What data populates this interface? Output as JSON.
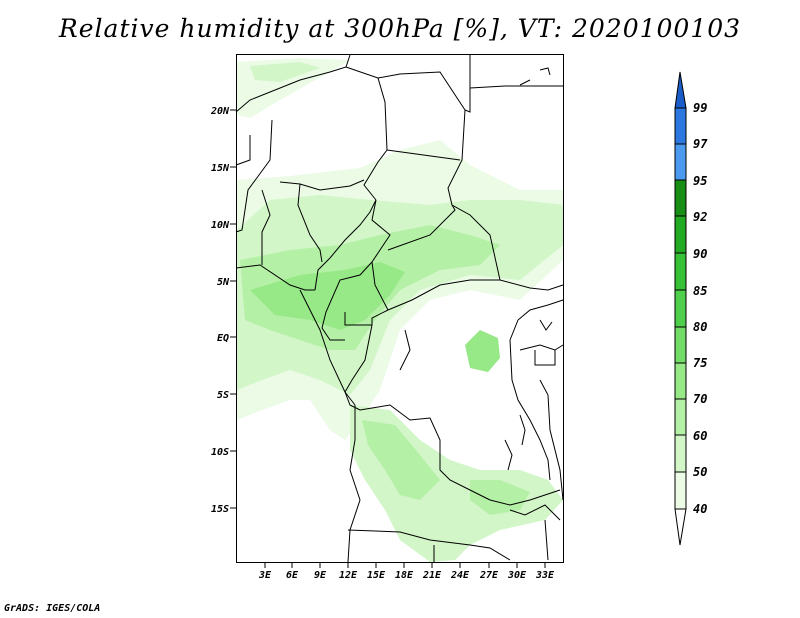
{
  "title": "Relative humidity at 300hPa [%], VT: 2020100103",
  "footer": "GrADS: IGES/COLA",
  "map": {
    "lat_labels": [
      "20N",
      "15N",
      "10N",
      "5N",
      "EQ",
      "5S",
      "10S",
      "15S"
    ],
    "lon_labels": [
      "3E",
      "6E",
      "9E",
      "12E",
      "15E",
      "18E",
      "21E",
      "24E",
      "27E",
      "30E",
      "33E"
    ]
  },
  "colorbar": {
    "levels": [
      "40",
      "50",
      "60",
      "70",
      "75",
      "80",
      "85",
      "90",
      "92",
      "95",
      "97",
      "99"
    ],
    "colors": {
      "lt40": "#ffffff",
      "c40_50": "#ebfbe6",
      "c50_60": "#d2f6c8",
      "c60_70": "#b4f0a6",
      "c70_75": "#97e887",
      "c75_80": "#72dc66",
      "c80_85": "#4fcf4c",
      "c85_90": "#36c136",
      "c90_92": "#22aa22",
      "c92_95": "#178f17",
      "c95_97": "#4a9af0",
      "c97_99": "#2c78e0",
      "gt99": "#1a5cc8"
    }
  }
}
